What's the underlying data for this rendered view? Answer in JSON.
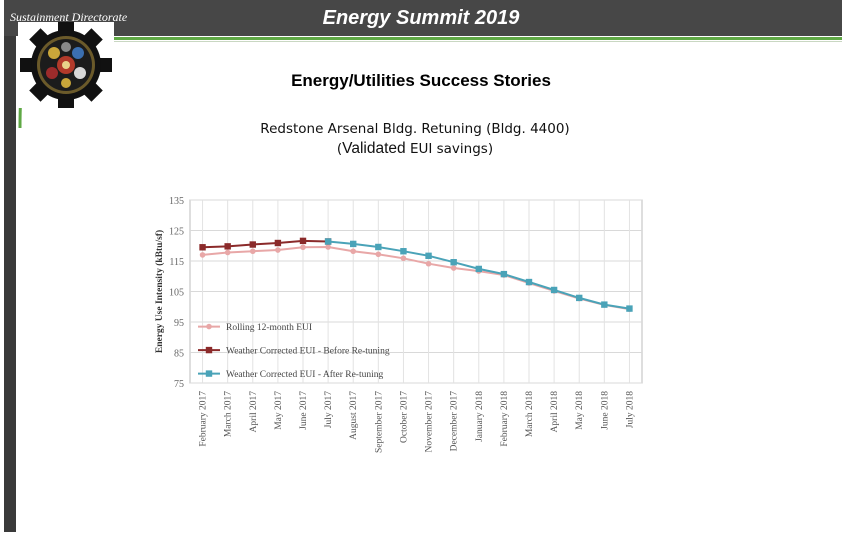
{
  "header": {
    "directorate": "Sustainment Directorate",
    "title": "Energy Summit 2019"
  },
  "heading": "Energy/Utilities Success Stories",
  "caption": {
    "line1": "Redstone Arsenal Bldg.  Retuning (Bldg. 4400)",
    "line2_open": "(",
    "line2_big": "Validated",
    "line2_rest": " EUI savings)"
  },
  "colors": {
    "header_bg": "#474747",
    "accent_green": "#5fa845",
    "rolling": "#e8a7a7",
    "before": "#8b2a2a",
    "after": "#4aa3b8"
  },
  "chart_data": {
    "type": "line",
    "ylabel": "Energy Use Intensity (kBtu/sf)",
    "ylim": [
      75,
      135
    ],
    "yticks": [
      75,
      85,
      95,
      105,
      115,
      125,
      135
    ],
    "categories": [
      "February 2017",
      "March 2017",
      "April 2017",
      "May 2017",
      "June 2017",
      "July 2017",
      "August 2017",
      "September 2017",
      "October 2017",
      "November 2017",
      "December 2017",
      "January 2018",
      "February 2018",
      "March 2018",
      "April 2018",
      "May 2018",
      "June 2018",
      "July 2018"
    ],
    "legend_position": "bottom-left",
    "grid": true,
    "series": [
      {
        "name": "Rolling 12-month EUI",
        "color": "#e8a7a7",
        "marker": "circle",
        "values": [
          117,
          117.8,
          118.2,
          118.6,
          119.5,
          119.6,
          118.2,
          117.2,
          115.9,
          114.1,
          112.7,
          111.7,
          110.4,
          107.8,
          105.2,
          102.7,
          100.6,
          99.2
        ]
      },
      {
        "name": "Weather Corrected EUI - Before Re-tuning",
        "color": "#8b2a2a",
        "marker": "square",
        "values": [
          119.5,
          119.8,
          120.4,
          120.9,
          121.6,
          121.4,
          null,
          null,
          null,
          null,
          null,
          null,
          null,
          null,
          null,
          null,
          null,
          null
        ]
      },
      {
        "name": "Weather Corrected EUI - After Re-tuning",
        "color": "#4aa3b8",
        "marker": "square",
        "values": [
          null,
          null,
          null,
          null,
          null,
          121.4,
          120.6,
          119.6,
          118.2,
          116.7,
          114.6,
          112.4,
          110.7,
          108.1,
          105.5,
          102.9,
          100.7,
          99.4
        ]
      }
    ]
  }
}
